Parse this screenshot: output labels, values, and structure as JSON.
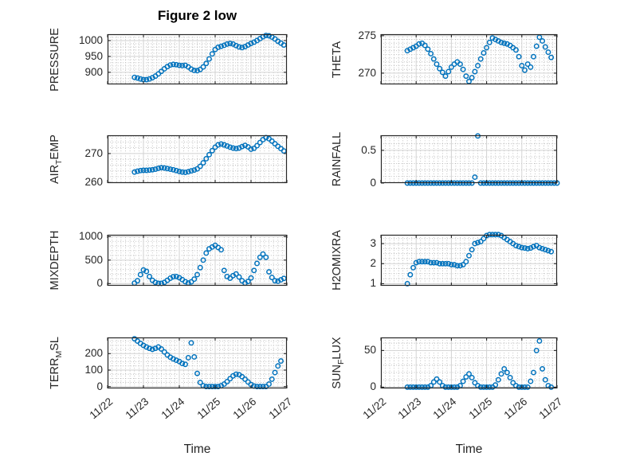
{
  "figure": {
    "title": "Figure 2 low",
    "xlabel": "Time"
  },
  "chart_data": {
    "type": "scatter",
    "marker": "open-circle",
    "layout_hint": "4x2 grid of subplots, shared time axis 11/22 to 11/27, major+dotted minor grid on",
    "colors": {
      "marker": "#0072BD",
      "axes": "#262626",
      "major_grid": "#d2d2d2",
      "minor_grid": "#a8a8a8",
      "background": "#ffffff"
    },
    "x_axis": {
      "label": "Time",
      "tick_labels": [
        "11/22",
        "11/23",
        "11/24",
        "11/25",
        "11/26",
        "11/27"
      ],
      "tick_positions_days": [
        0,
        1,
        2,
        3,
        4,
        5
      ],
      "range_days": [
        0,
        5
      ],
      "minor_step_days": 0.125
    },
    "subplots": [
      {
        "name": "pressure",
        "grid": {
          "row": 0,
          "col": 0
        },
        "ylabel_parts": [
          [
            "PRESSURE",
            false
          ]
        ],
        "yticks": [
          900,
          950,
          1000
        ],
        "ytick_labels": [
          "900",
          "950",
          "1000"
        ],
        "ylim": [
          862,
          1020
        ],
        "minor_y_step": 10,
        "series": {
          "x_start_days": 0.75,
          "x_step_days": 0.0833333,
          "y": [
            884,
            882,
            879,
            877,
            877,
            879,
            883,
            888,
            895,
            903,
            911,
            918,
            923,
            925,
            924,
            922,
            921,
            922,
            917,
            910,
            906,
            905,
            909,
            917,
            928,
            942,
            958,
            972,
            979,
            982,
            985,
            989,
            991,
            989,
            984,
            980,
            978,
            981,
            986,
            991,
            995,
            1000,
            1006,
            1012,
            1016,
            1015,
            1011,
            1005,
            998,
            992,
            986
          ]
        }
      },
      {
        "name": "theta",
        "grid": {
          "row": 0,
          "col": 1
        },
        "ylabel_parts": [
          [
            "THETA",
            false
          ]
        ],
        "yticks": [
          270,
          275
        ],
        "ytick_labels": [
          "270",
          "275"
        ],
        "ylim": [
          268.5,
          275.2
        ],
        "minor_y_step": 0.5,
        "series": {
          "x_start_days": 0.75,
          "x_step_days": 0.0833333,
          "y": [
            273.0,
            273.2,
            273.4,
            273.6,
            273.9,
            274.0,
            273.7,
            273.2,
            272.6,
            271.9,
            271.2,
            270.6,
            270.1,
            269.6,
            270.2,
            270.8,
            271.2,
            271.5,
            271.2,
            270.5,
            269.6,
            268.9,
            269.4,
            270.2,
            271.0,
            271.9,
            272.7,
            273.4,
            274.1,
            274.7,
            274.5,
            274.3,
            274.1,
            274.0,
            273.9,
            273.7,
            273.4,
            273.1,
            272.2,
            271.0,
            270.4,
            271.2,
            270.8,
            272.2,
            273.6,
            274.8,
            274.3,
            273.5,
            272.8,
            272.1
          ]
        }
      },
      {
        "name": "air-temp",
        "grid": {
          "row": 1,
          "col": 0
        },
        "ylabel_parts": [
          [
            "AIR",
            false
          ],
          [
            "T",
            true
          ],
          [
            "EMP",
            false
          ]
        ],
        "yticks": [
          260,
          270
        ],
        "ytick_labels": [
          "260",
          "270"
        ],
        "ylim": [
          259.8,
          276.3
        ],
        "minor_y_step": 2,
        "series": {
          "x_start_days": 0.75,
          "x_step_days": 0.0833333,
          "y": [
            263.6,
            263.9,
            264.1,
            264.2,
            264.2,
            264.3,
            264.4,
            264.6,
            264.9,
            265.1,
            265.0,
            264.8,
            264.6,
            264.4,
            264.1,
            263.8,
            263.6,
            263.5,
            263.7,
            264.0,
            264.3,
            264.7,
            265.6,
            266.8,
            268.2,
            269.6,
            271.0,
            272.2,
            273.0,
            273.3,
            273.0,
            272.6,
            272.2,
            271.9,
            271.7,
            271.9,
            272.4,
            272.8,
            272.3,
            271.5,
            271.8,
            272.7,
            273.8,
            274.8,
            275.5,
            275.1,
            274.3,
            273.4,
            272.5,
            271.7,
            270.9
          ]
        }
      },
      {
        "name": "rainfall",
        "grid": {
          "row": 1,
          "col": 1
        },
        "ylabel_parts": [
          [
            "RAINFALL",
            false
          ]
        ],
        "yticks": [
          0,
          0.5
        ],
        "ytick_labels": [
          "0",
          "0.5"
        ],
        "ylim": [
          0,
          0.73
        ],
        "minor_y_step": 0.1,
        "series": {
          "x_start_days": 0.75,
          "x_step_days": 0.0833333,
          "y": [
            0,
            0,
            0,
            0,
            0,
            0,
            0,
            0,
            0,
            0,
            0,
            0,
            0,
            0,
            0,
            0,
            0,
            0,
            0,
            0,
            0,
            0,
            0,
            0.09,
            0.72,
            0,
            0,
            0,
            0,
            0,
            0,
            0,
            0,
            0,
            0,
            0,
            0,
            0,
            0,
            0,
            0,
            0,
            0,
            0,
            0,
            0,
            0,
            0,
            0,
            0,
            0,
            0
          ]
        }
      },
      {
        "name": "mixdepth",
        "grid": {
          "row": 2,
          "col": 0
        },
        "ylabel_parts": [
          [
            "MIXDEPTH",
            false
          ]
        ],
        "yticks": [
          0,
          500,
          1000
        ],
        "ytick_labels": [
          "0",
          "500",
          "1000"
        ],
        "ylim": [
          -46,
          1040
        ],
        "minor_y_step": 100,
        "series": {
          "x_start_days": 0.75,
          "x_step_days": 0.0833333,
          "y": [
            10,
            60,
            190,
            290,
            260,
            150,
            70,
            25,
            5,
            5,
            25,
            70,
            115,
            145,
            150,
            125,
            85,
            40,
            12,
            35,
            95,
            190,
            340,
            500,
            650,
            740,
            780,
            815,
            770,
            720,
            280,
            150,
            115,
            170,
            205,
            140,
            60,
            10,
            45,
            120,
            280,
            430,
            560,
            630,
            560,
            250,
            130,
            60,
            50,
            80,
            110
          ]
        }
      },
      {
        "name": "h2omixra",
        "grid": {
          "row": 2,
          "col": 1
        },
        "ylabel_parts": [
          [
            "H2OMIXRA",
            false
          ]
        ],
        "yticks": [
          1,
          2,
          3
        ],
        "ytick_labels": [
          "1",
          "2",
          "3"
        ],
        "ylim": [
          0.9,
          3.44
        ],
        "minor_y_step": 0.25,
        "series": {
          "x_start_days": 0.75,
          "x_step_days": 0.0833333,
          "y": [
            1.0,
            1.45,
            1.8,
            2.05,
            2.1,
            2.1,
            2.1,
            2.1,
            2.05,
            2.05,
            2.05,
            2.0,
            2.0,
            2.0,
            2.0,
            1.95,
            1.95,
            1.9,
            1.9,
            1.95,
            2.1,
            2.4,
            2.7,
            3.0,
            3.05,
            3.1,
            3.25,
            3.4,
            3.45,
            3.45,
            3.45,
            3.45,
            3.4,
            3.3,
            3.2,
            3.1,
            3.0,
            2.9,
            2.85,
            2.8,
            2.78,
            2.75,
            2.78,
            2.85,
            2.9,
            2.8,
            2.75,
            2.7,
            2.65,
            2.6
          ]
        }
      },
      {
        "name": "terr-msl",
        "grid": {
          "row": 3,
          "col": 0
        },
        "ylabel_parts": [
          [
            "TERR",
            false
          ],
          [
            "M",
            true
          ],
          [
            "SL",
            false
          ]
        ],
        "yticks": [
          0,
          100,
          200
        ],
        "ytick_labels": [
          "0",
          "100",
          "200"
        ],
        "ylim": [
          -11,
          298
        ],
        "minor_y_step": 25,
        "series": {
          "x_start_days": 0.75,
          "x_step_days": 0.0833333,
          "y": [
            290,
            276,
            262,
            250,
            240,
            232,
            226,
            232,
            240,
            228,
            210,
            192,
            178,
            168,
            160,
            152,
            140,
            135,
            175,
            265,
            180,
            80,
            25,
            5,
            0,
            0,
            0,
            0,
            0,
            5,
            15,
            30,
            48,
            65,
            75,
            72,
            60,
            45,
            28,
            12,
            3,
            0,
            0,
            0,
            0,
            15,
            45,
            85,
            125,
            155
          ]
        }
      },
      {
        "name": "sun-flux",
        "grid": {
          "row": 3,
          "col": 1
        },
        "ylabel_parts": [
          [
            "SUN",
            false
          ],
          [
            "F",
            true
          ],
          [
            "LUX",
            false
          ]
        ],
        "yticks": [
          0,
          50
        ],
        "ytick_labels": [
          "0",
          "50"
        ],
        "ylim": [
          -1.7,
          67.8
        ],
        "minor_y_step": 10,
        "series": {
          "x_start_days": 0.75,
          "x_step_days": 0.0833333,
          "y": [
            0,
            0,
            0,
            0,
            0,
            0,
            0,
            0,
            2,
            7,
            11,
            7,
            2,
            0,
            0,
            0,
            0,
            0,
            2,
            8,
            14,
            18,
            13,
            6,
            2,
            0,
            0,
            0,
            0,
            0,
            3,
            10,
            18,
            25,
            20,
            13,
            6,
            2,
            0,
            0,
            0,
            0,
            8,
            20,
            50,
            63,
            25,
            10,
            2,
            0
          ]
        }
      }
    ]
  }
}
